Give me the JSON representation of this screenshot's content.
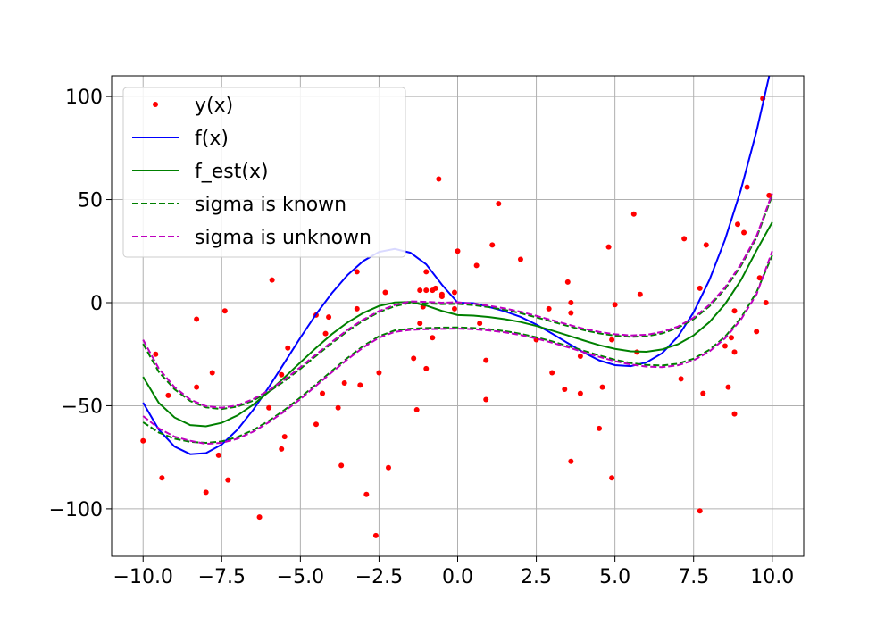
{
  "chart_data": {
    "type": "line",
    "title": "",
    "xlabel": "",
    "ylabel": "",
    "xlim": [
      -11,
      11
    ],
    "ylim": [
      -123,
      110
    ],
    "grid": true,
    "legend_position": "top-left",
    "x_ticks": [
      -10.0,
      -7.5,
      -5.0,
      -2.5,
      0.0,
      2.5,
      5.0,
      7.5,
      10.0
    ],
    "x_tick_labels": [
      "−10.0",
      "−7.5",
      "−5.0",
      "−2.5",
      "0.0",
      "2.5",
      "5.0",
      "7.5",
      "10.0"
    ],
    "y_ticks": [
      100,
      50,
      0,
      -50,
      -100
    ],
    "y_tick_labels": [
      "100",
      "50",
      "0",
      "−50",
      "−100"
    ],
    "x": [
      -10,
      -9.5,
      -9,
      -8.5,
      -8,
      -7.5,
      -7,
      -6.5,
      -6,
      -5.5,
      -5,
      -4.5,
      -4,
      -3.5,
      -3,
      -2.5,
      -2,
      -1.5,
      -1,
      -0.5,
      0,
      0.5,
      1,
      1.5,
      2,
      2.5,
      3,
      3.5,
      4,
      4.5,
      5,
      5.5,
      6,
      6.5,
      7,
      7.5,
      8,
      8.5,
      9,
      9.5,
      10
    ],
    "series": [
      {
        "name": "y(x)",
        "style": "scatter",
        "color": "#ff0000",
        "points": [
          [
            -10.0,
            -67
          ],
          [
            -9.6,
            -25
          ],
          [
            -9.4,
            -85
          ],
          [
            -9.2,
            -45
          ],
          [
            -8.3,
            -8
          ],
          [
            -8.3,
            -41
          ],
          [
            -8.0,
            -92
          ],
          [
            -7.8,
            -34
          ],
          [
            -7.6,
            -74
          ],
          [
            -7.4,
            -4
          ],
          [
            -7.3,
            -86
          ],
          [
            -6.3,
            -104
          ],
          [
            -6.0,
            -51
          ],
          [
            -5.9,
            11
          ],
          [
            -5.6,
            -35
          ],
          [
            -5.6,
            -71
          ],
          [
            -5.5,
            -65
          ],
          [
            -5.4,
            -22
          ],
          [
            -4.5,
            -6
          ],
          [
            -4.5,
            -59
          ],
          [
            -4.3,
            -44
          ],
          [
            -4.2,
            -15
          ],
          [
            -4.1,
            -7
          ],
          [
            -3.8,
            -51
          ],
          [
            -3.7,
            -79
          ],
          [
            -3.6,
            -39
          ],
          [
            -3.2,
            -3
          ],
          [
            -3.2,
            15
          ],
          [
            -3.1,
            -40
          ],
          [
            -2.9,
            -93
          ],
          [
            -2.6,
            -113
          ],
          [
            -2.5,
            -34
          ],
          [
            -2.3,
            5
          ],
          [
            -2.2,
            -80
          ],
          [
            -1.4,
            -27
          ],
          [
            -1.3,
            -52
          ],
          [
            -1.2,
            -10
          ],
          [
            -1.2,
            6
          ],
          [
            -1.1,
            -2
          ],
          [
            -1.0,
            6
          ],
          [
            -1.0,
            -32
          ],
          [
            -1.0,
            15
          ],
          [
            -0.8,
            6
          ],
          [
            -0.8,
            -17
          ],
          [
            -0.7,
            7
          ],
          [
            -0.6,
            60
          ],
          [
            -0.5,
            4
          ],
          [
            -0.5,
            3
          ],
          [
            -0.1,
            5
          ],
          [
            -0.1,
            -3
          ],
          [
            0.0,
            25
          ],
          [
            0.6,
            18
          ],
          [
            0.7,
            -10
          ],
          [
            0.9,
            -47
          ],
          [
            0.9,
            -28
          ],
          [
            1.1,
            28
          ],
          [
            1.3,
            48
          ],
          [
            2.0,
            21
          ],
          [
            2.5,
            -18
          ],
          [
            2.9,
            -3
          ],
          [
            3.0,
            -34
          ],
          [
            3.4,
            -42
          ],
          [
            3.5,
            10
          ],
          [
            3.6,
            -5
          ],
          [
            3.6,
            0
          ],
          [
            3.6,
            -77
          ],
          [
            3.9,
            -26
          ],
          [
            3.9,
            -44
          ],
          [
            4.5,
            -61
          ],
          [
            4.6,
            -41
          ],
          [
            4.8,
            27
          ],
          [
            4.9,
            -85
          ],
          [
            4.9,
            -18
          ],
          [
            5.0,
            -1
          ],
          [
            5.6,
            43
          ],
          [
            5.7,
            -24
          ],
          [
            5.8,
            4
          ],
          [
            7.1,
            -37
          ],
          [
            7.2,
            31
          ],
          [
            7.7,
            7
          ],
          [
            7.7,
            -101
          ],
          [
            7.8,
            -44
          ],
          [
            7.9,
            28
          ],
          [
            8.5,
            -21
          ],
          [
            8.6,
            -41
          ],
          [
            8.7,
            -17
          ],
          [
            8.8,
            -4
          ],
          [
            8.8,
            -24
          ],
          [
            8.8,
            -54
          ],
          [
            8.9,
            38
          ],
          [
            9.1,
            34
          ],
          [
            9.2,
            56
          ],
          [
            9.5,
            -14
          ],
          [
            9.6,
            12
          ],
          [
            9.7,
            99
          ],
          [
            9.8,
            0
          ],
          [
            9.9,
            52
          ]
        ]
      },
      {
        "name": "f(x)",
        "style": "solid",
        "color": "#0000ff",
        "values": [
          -48.5,
          -61.6,
          -69.8,
          -73.5,
          -73.0,
          -68.8,
          -61.6,
          -52.0,
          -40.9,
          -29.0,
          -17.0,
          -5.6,
          4.6,
          13.4,
          20.2,
          24.6,
          26.1,
          24.2,
          18.6,
          8.7,
          0.0,
          -0.2,
          -2.1,
          -4.2,
          -6.9,
          -10.6,
          -15.0,
          -19.6,
          -24.1,
          -28.0,
          -30.3,
          -30.8,
          -29.0,
          -24.5,
          -16.5,
          -4.7,
          10.9,
          30.6,
          54.6,
          83.1,
          116.5
        ]
      },
      {
        "name": "f_est(x)",
        "style": "solid",
        "color": "#008000",
        "values": [
          -36.0,
          -48.6,
          -55.7,
          -59.4,
          -60.0,
          -58.3,
          -54.7,
          -49.5,
          -43.2,
          -36.2,
          -29.0,
          -21.9,
          -15.3,
          -9.6,
          -5.0,
          -1.6,
          0.1,
          0.3,
          -1.4,
          -4.0,
          -6.0,
          -6.3,
          -7.0,
          -8.0,
          -9.4,
          -11.3,
          -13.5,
          -15.9,
          -18.3,
          -20.6,
          -22.4,
          -23.6,
          -23.8,
          -22.7,
          -20.2,
          -15.9,
          -9.5,
          -0.7,
          10.8,
          25.3,
          39.0
        ]
      },
      {
        "name": "sigma is known",
        "style": "dashed",
        "color": "#008000",
        "upper": [
          -20.0,
          -33.6,
          -42.0,
          -47.7,
          -50.8,
          -51.6,
          -50.4,
          -47.5,
          -43.2,
          -38.0,
          -32.1,
          -25.8,
          -19.7,
          -13.8,
          -8.7,
          -4.6,
          -1.7,
          -0.1,
          -0.3,
          -0.7,
          -0.6,
          -1.2,
          -2.2,
          -3.5,
          -5.1,
          -7.1,
          -9.2,
          -11.3,
          -13.3,
          -14.9,
          -16.0,
          -16.6,
          -16.3,
          -14.9,
          -12.2,
          -8.0,
          -1.8,
          6.6,
          17.7,
          31.5,
          52.0
        ],
        "lower": [
          -58.0,
          -63.0,
          -66.0,
          -67.5,
          -68.0,
          -67.3,
          -65.2,
          -61.8,
          -57.3,
          -52.0,
          -46.0,
          -39.6,
          -33.1,
          -26.8,
          -21.0,
          -16.3,
          -13.5,
          -12.6,
          -12.3,
          -12.1,
          -12.0,
          -12.3,
          -12.9,
          -13.8,
          -15.1,
          -16.8,
          -18.8,
          -21.0,
          -23.3,
          -25.6,
          -27.7,
          -29.3,
          -30.2,
          -30.5,
          -29.6,
          -27.2,
          -22.9,
          -16.5,
          -7.5,
          5.0,
          23.0
        ]
      },
      {
        "name": "sigma is unknown",
        "style": "dashed",
        "color": "#bf00bf",
        "upper": [
          -18.0,
          -32.0,
          -41.0,
          -47.0,
          -50.2,
          -51.0,
          -49.8,
          -46.8,
          -42.5,
          -37.3,
          -31.3,
          -25.1,
          -19.0,
          -13.2,
          -8.2,
          -4.1,
          -1.1,
          0.6,
          0.4,
          0.0,
          0.2,
          -0.5,
          -1.5,
          -2.8,
          -4.4,
          -6.4,
          -8.5,
          -10.6,
          -12.6,
          -14.2,
          -15.3,
          -15.9,
          -15.6,
          -14.2,
          -11.6,
          -7.3,
          -1.1,
          7.4,
          18.5,
          32.3,
          53.0
        ],
        "lower": [
          -55.0,
          -61.0,
          -65.0,
          -67.0,
          -68.5,
          -68.0,
          -66.0,
          -62.6,
          -58.0,
          -52.7,
          -46.8,
          -40.3,
          -33.8,
          -27.5,
          -21.7,
          -17.0,
          -14.2,
          -13.2,
          -12.9,
          -12.7,
          -12.6,
          -12.9,
          -13.5,
          -14.4,
          -15.7,
          -17.4,
          -19.4,
          -21.6,
          -24.0,
          -26.3,
          -28.4,
          -30.0,
          -31.0,
          -31.3,
          -30.4,
          -28.0,
          -23.7,
          -17.3,
          -8.3,
          4.0,
          25.0
        ]
      }
    ]
  }
}
